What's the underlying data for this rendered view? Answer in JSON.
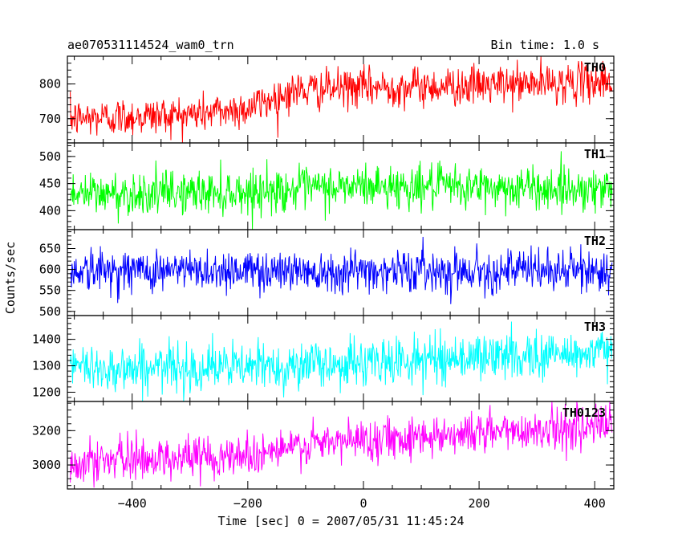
{
  "header": {
    "left": "ae070531114524_wam0_trn",
    "right": "Bin time: 1.0 s"
  },
  "chart_data": {
    "type": "line",
    "title": "ae070531114524_wam0_trn",
    "xlabel": "Time [sec] 0 = 2007/05/31 11:45:24",
    "ylabel": "Counts/sec",
    "xlim": [
      -512,
      433
    ],
    "x_ticks": [
      -400,
      -200,
      0,
      200,
      400
    ],
    "x_data_range": [
      -507,
      430
    ],
    "bin_time_s": 1.0,
    "grid": false,
    "panels": [
      {
        "name": "TH0",
        "color": "#ff0000",
        "ylim": [
          630,
          880
        ],
        "y_ticks": [
          700,
          800
        ],
        "trend": [
          [
            -507,
            700
          ],
          [
            -300,
            712
          ],
          [
            -200,
            730
          ],
          [
            -120,
            780
          ],
          [
            0,
            790
          ],
          [
            200,
            795
          ],
          [
            430,
            808
          ]
        ],
        "noise": 28
      },
      {
        "name": "TH1",
        "color": "#00ff00",
        "ylim": [
          365,
          525
        ],
        "y_ticks": [
          400,
          450,
          500
        ],
        "trend": [
          [
            -507,
            430
          ],
          [
            -200,
            435
          ],
          [
            0,
            445
          ],
          [
            430,
            440
          ]
        ],
        "noise": 20
      },
      {
        "name": "TH2",
        "color": "#0000ff",
        "ylim": [
          490,
          695
        ],
        "y_ticks": [
          500,
          550,
          600,
          650
        ],
        "trend": [
          [
            -507,
            598
          ],
          [
            0,
            598
          ],
          [
            430,
            597
          ]
        ],
        "noise": 25
      },
      {
        "name": "TH3",
        "color": "#00ffff",
        "ylim": [
          1165,
          1490
        ],
        "y_ticks": [
          1200,
          1300,
          1400
        ],
        "trend": [
          [
            -507,
            1290
          ],
          [
            -200,
            1295
          ],
          [
            0,
            1310
          ],
          [
            150,
            1330
          ],
          [
            430,
            1350
          ]
        ],
        "noise": 45
      },
      {
        "name": "TH0123",
        "color": "#ff00ff",
        "ylim": [
          2860,
          3370
        ],
        "y_ticks": [
          3000,
          3200
        ],
        "trend": [
          [
            -507,
            3020
          ],
          [
            -200,
            3060
          ],
          [
            -100,
            3110
          ],
          [
            0,
            3150
          ],
          [
            200,
            3190
          ],
          [
            430,
            3230
          ]
        ],
        "noise": 60
      }
    ]
  }
}
